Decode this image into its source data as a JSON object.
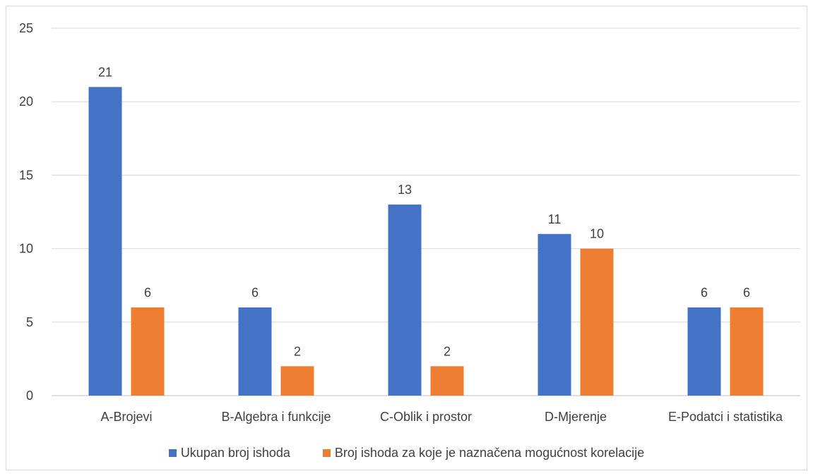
{
  "chart_data": {
    "type": "bar",
    "categories": [
      "A-Brojevi",
      "B-Algebra i funkcije",
      "C-Oblik i prostor",
      "D-Mjerenje",
      "E-Podatci i statistika"
    ],
    "series": [
      {
        "name": "Ukupan broj ishoda",
        "values": [
          21,
          6,
          13,
          11,
          6
        ],
        "color": "#4472c4"
      },
      {
        "name": "Broj ishoda za koje je naznačena mogućnost korelacije",
        "values": [
          6,
          2,
          2,
          10,
          6
        ],
        "color": "#ed7d31"
      }
    ],
    "ylim": [
      0,
      25
    ],
    "yticks": [
      0,
      5,
      10,
      15,
      20,
      25
    ],
    "grid": true,
    "legend_position": "bottom",
    "data_labels": true
  }
}
